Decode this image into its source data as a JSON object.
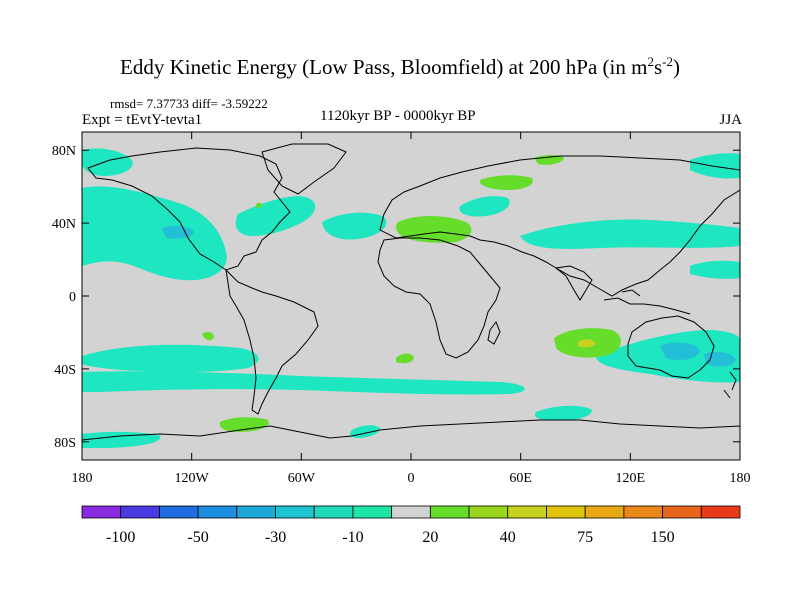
{
  "title": {
    "main": "Eddy Kinetic Energy (Low Pass, Bloomfield) at 200 hPa (in m",
    "exp1": "2",
    "mid": "s",
    "exp2": "-2",
    "close": ")"
  },
  "rmsd_text": "rmsd= 7.37733 diff= -3.59222",
  "expt_text": "Expt = tEvtY-tevta1",
  "period_text": "1120kyr BP - 0000kyr BP",
  "season_text": "JJA",
  "map": {
    "lat_labels": [
      "80N",
      "40N",
      "0",
      "40S",
      "80S"
    ],
    "lat_values": [
      80,
      40,
      0,
      -40,
      -80
    ],
    "lon_labels": [
      "180",
      "120W",
      "60W",
      "0",
      "60E",
      "120E",
      "180"
    ],
    "lon_values": [
      -180,
      -120,
      -60,
      0,
      60,
      120,
      180
    ],
    "colors": {
      "land_ocean": "#d3d3d3",
      "neg_light": "#1ee6c0",
      "neg_mid": "#22bfd6",
      "pos_light": "#66dd2a",
      "pos_mid": "#c7d21e"
    }
  },
  "colorbar": {
    "colors": [
      "#8a2be2",
      "#4a3ae0",
      "#1f6ee0",
      "#1c8ee0",
      "#1ea8d8",
      "#1fc4d0",
      "#20dcbc",
      "#1ee6a8",
      "#d3d3d3",
      "#66dd2a",
      "#9ad61e",
      "#c7d21e",
      "#e0c410",
      "#e8a814",
      "#e88818",
      "#e8641a",
      "#e83a1a"
    ],
    "labels": [
      "-100",
      "-50",
      "-30",
      "-10",
      "20",
      "40",
      "75",
      "150"
    ],
    "label_boundaries": [
      1,
      3,
      5,
      7,
      9,
      11,
      13,
      15
    ]
  }
}
